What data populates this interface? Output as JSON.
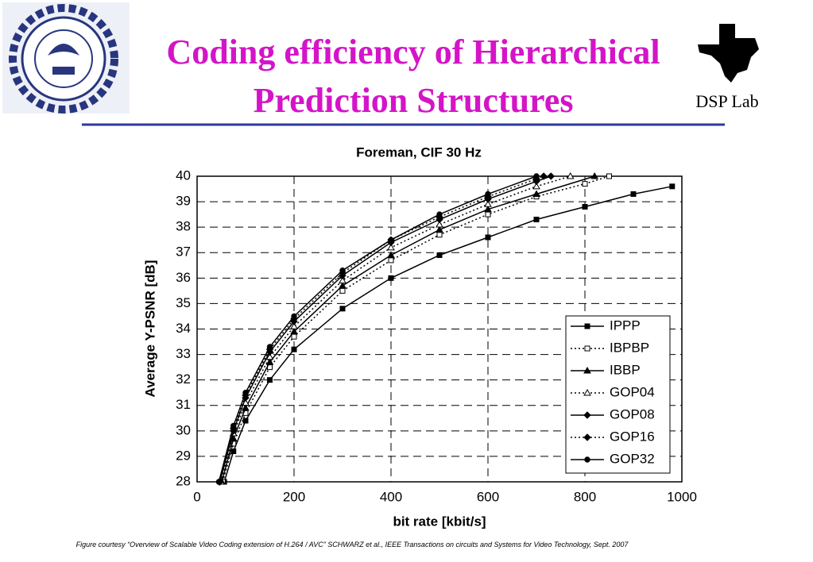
{
  "slide": {
    "title_line1": "Coding efficiency of Hierarchical",
    "title_line2": "Prediction Structures",
    "lab": "DSP Lab",
    "caption": "Figure courtesy “Overview of Scalable Video Coding extension of H.264 / AVC” SCHWARZ et al., IEEE Transactions on circuits and Systems for Video Technology, Sept. 2007"
  },
  "chart_data": {
    "type": "line",
    "title": "Foreman, CIF 30 Hz",
    "x_label": "bit rate [kbit/s]",
    "y_label": "Average Y-PSNR [dB]",
    "xlim": [
      0,
      1000
    ],
    "xticks": [
      0,
      200,
      400,
      600,
      800,
      1000
    ],
    "ylim": [
      28,
      40
    ],
    "yticks": [
      28,
      29,
      30,
      31,
      32,
      33,
      34,
      35,
      36,
      37,
      38,
      39,
      40
    ],
    "grid": true,
    "legend": "lower right",
    "series": [
      {
        "name": "IPPP",
        "color": "#000000",
        "marker": "square",
        "filled": true,
        "dash": "solid",
        "x": [
          56,
          75,
          100,
          150,
          200,
          300,
          400,
          500,
          600,
          700,
          800,
          900,
          980
        ],
        "values": [
          28,
          29.2,
          30.4,
          32.0,
          33.2,
          34.8,
          36.0,
          36.9,
          37.6,
          38.3,
          38.8,
          39.3,
          39.6
        ]
      },
      {
        "name": "IBPBP",
        "color": "#000000",
        "marker": "square",
        "filled": false,
        "dash": "dotted",
        "x": [
          53,
          75,
          100,
          150,
          200,
          300,
          400,
          500,
          600,
          700,
          800,
          850
        ],
        "values": [
          28,
          29.5,
          30.7,
          32.5,
          33.7,
          35.5,
          36.7,
          37.7,
          38.5,
          39.2,
          39.7,
          40
        ]
      },
      {
        "name": "IBBP",
        "color": "#000000",
        "marker": "triangle",
        "filled": true,
        "dash": "solid",
        "x": [
          51,
          75,
          100,
          150,
          200,
          300,
          400,
          500,
          600,
          700,
          820
        ],
        "values": [
          28,
          29.7,
          30.9,
          32.7,
          33.9,
          35.7,
          36.9,
          37.9,
          38.7,
          39.3,
          40
        ]
      },
      {
        "name": "GOP04",
        "color": "#000000",
        "marker": "triangle",
        "filled": false,
        "dash": "dotted",
        "x": [
          49,
          75,
          100,
          150,
          200,
          300,
          400,
          500,
          600,
          700,
          770
        ],
        "values": [
          28,
          29.9,
          31.1,
          32.9,
          34.1,
          35.9,
          37.2,
          38.1,
          38.9,
          39.6,
          40
        ]
      },
      {
        "name": "GOP08",
        "color": "#000000",
        "marker": "diamond",
        "filled": true,
        "dash": "solid",
        "x": [
          47,
          75,
          100,
          150,
          200,
          300,
          400,
          500,
          600,
          700,
          730
        ],
        "values": [
          28,
          30.0,
          31.3,
          33.1,
          34.3,
          36.1,
          37.4,
          38.3,
          39.1,
          39.8,
          40
        ]
      },
      {
        "name": "GOP16",
        "color": "#000000",
        "marker": "diamond",
        "filled": true,
        "dash": "dotted",
        "x": [
          46,
          75,
          100,
          150,
          200,
          300,
          400,
          500,
          600,
          700,
          715
        ],
        "values": [
          28,
          30.1,
          31.4,
          33.2,
          34.4,
          36.2,
          37.5,
          38.4,
          39.2,
          39.9,
          40
        ]
      },
      {
        "name": "GOP32",
        "color": "#000000",
        "marker": "circle",
        "filled": true,
        "dash": "solid",
        "x": [
          45,
          75,
          100,
          150,
          200,
          300,
          400,
          500,
          600,
          700
        ],
        "values": [
          28,
          30.2,
          31.5,
          33.3,
          34.5,
          36.3,
          37.5,
          38.5,
          39.3,
          40.0
        ]
      }
    ]
  }
}
